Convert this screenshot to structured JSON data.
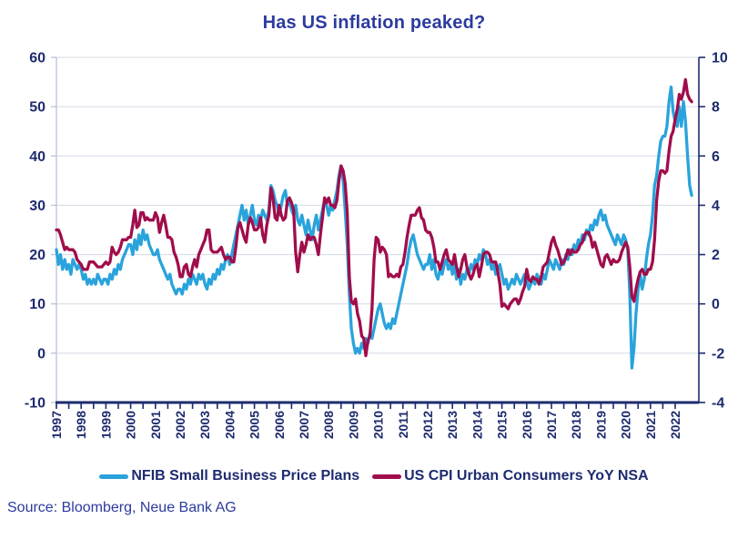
{
  "title": "Has US inflation peaked?",
  "source": "Source: Bloomberg, Neue Bank AG",
  "legend": [
    {
      "label": "NFIB Small Business Price Plans",
      "color": "#29a3dc"
    },
    {
      "label": "US CPI Urban Consumers YoY NSA",
      "color": "#a00d4b"
    }
  ],
  "colors": {
    "title_text": "#2c3b9e",
    "tick_text": "#1e2b6e",
    "nfib_blue": "#29a3dc",
    "cpi_maroon": "#a00d4b",
    "grid": "#d3d9e3",
    "axis_light": "#b9c3d4",
    "axis_dark": "#1e2b6e"
  },
  "chart_data": {
    "type": "line",
    "title": "Has US inflation peaked?",
    "x_frequency": "monthly",
    "x_start_year": 1997,
    "x_tick_labels": [
      "1997",
      "1998",
      "1999",
      "2000",
      "2001",
      "2002",
      "2003",
      "2004",
      "2005",
      "2006",
      "2007",
      "2008",
      "2009",
      "2010",
      "2011",
      "2012",
      "2013",
      "2014",
      "2015",
      "2016",
      "2017",
      "2018",
      "2019",
      "2020",
      "2021",
      "2022"
    ],
    "grid": "horizontal",
    "legend_position": "bottom",
    "left_axis": {
      "range": [
        -10,
        60
      ],
      "ticks": [
        60,
        50,
        40,
        30,
        20,
        10,
        0,
        -10
      ],
      "series": "NFIB Small Business Price Plans"
    },
    "right_axis": {
      "range": [
        -4,
        10
      ],
      "ticks": [
        10,
        8,
        6,
        4,
        2,
        0,
        -2,
        -4
      ],
      "series": "US CPI Urban Consumers YoY NSA"
    },
    "series": [
      {
        "name": "NFIB Small Business Price Plans",
        "axis": "left",
        "color": "#29a3dc",
        "values": [
          21,
          18,
          20,
          17,
          19,
          17,
          18,
          16,
          19,
          18,
          17,
          18,
          17,
          15,
          16,
          14,
          15,
          14,
          15,
          14,
          16,
          15,
          14,
          15,
          15,
          14,
          16,
          15,
          17,
          16,
          18,
          17,
          19,
          20,
          21,
          22,
          22,
          20,
          23,
          21,
          24,
          22,
          25,
          23,
          24,
          22,
          21,
          20,
          20,
          21,
          19,
          18,
          17,
          16,
          15,
          16,
          14,
          13,
          12,
          13,
          13,
          12,
          14,
          13,
          15,
          14,
          16,
          15,
          14,
          16,
          15,
          16,
          14,
          13,
          15,
          14,
          16,
          15,
          17,
          16,
          18,
          17,
          19,
          20,
          18,
          20,
          22,
          24,
          26,
          28,
          30,
          27,
          29,
          26,
          28,
          30,
          27,
          26,
          28,
          27,
          29,
          28,
          27,
          29,
          34,
          33,
          31,
          30,
          28,
          30,
          32,
          33,
          30,
          31,
          29,
          28,
          30,
          27,
          26,
          28,
          26,
          24,
          27,
          25,
          23,
          26,
          28,
          25,
          27,
          29,
          31,
          30,
          28,
          30,
          29,
          31,
          33,
          36,
          38,
          35,
          29,
          22,
          12,
          5,
          2,
          0,
          1,
          0,
          2,
          1,
          3,
          2,
          4,
          3,
          5,
          7,
          9,
          10,
          8,
          6,
          5,
          6,
          5,
          7,
          6,
          8,
          10,
          12,
          14,
          16,
          18,
          21,
          23,
          24,
          22,
          20,
          19,
          18,
          17,
          18,
          18,
          20,
          17,
          19,
          16,
          15,
          17,
          16,
          18,
          19,
          17,
          18,
          16,
          18,
          15,
          17,
          14,
          16,
          15,
          17,
          16,
          18,
          17,
          19,
          18,
          20,
          19,
          21,
          20,
          18,
          19,
          17,
          18,
          16,
          17,
          18,
          16,
          14,
          15,
          13,
          14,
          15,
          14,
          16,
          15,
          14,
          15,
          16,
          15,
          13,
          14,
          15,
          14,
          16,
          15,
          14,
          16,
          15,
          17,
          19,
          18,
          17,
          19,
          18,
          17,
          19,
          18,
          20,
          19,
          21,
          20,
          22,
          21,
          23,
          22,
          24,
          23,
          25,
          24,
          26,
          25,
          27,
          26,
          28,
          29,
          27,
          28,
          26,
          25,
          24,
          23,
          22,
          24,
          23,
          22,
          24,
          23,
          21,
          12,
          -3,
          1,
          8,
          13,
          16,
          13,
          15,
          19,
          22,
          24,
          28,
          34,
          36,
          40,
          43,
          44,
          44,
          46,
          51,
          54,
          49,
          47,
          46,
          50,
          46,
          51,
          47,
          40,
          34,
          32
        ]
      },
      {
        "name": "US CPI Urban Consumers YoY NSA",
        "axis": "right",
        "color": "#a00d4b",
        "values": [
          3.0,
          3.0,
          2.8,
          2.5,
          2.2,
          2.3,
          2.2,
          2.2,
          2.2,
          2.1,
          1.8,
          1.7,
          1.6,
          1.4,
          1.4,
          1.4,
          1.7,
          1.7,
          1.7,
          1.6,
          1.5,
          1.5,
          1.5,
          1.6,
          1.7,
          1.6,
          1.7,
          2.3,
          2.1,
          2.0,
          2.1,
          2.3,
          2.6,
          2.6,
          2.6,
          2.7,
          2.7,
          3.2,
          3.8,
          3.1,
          3.2,
          3.7,
          3.7,
          3.4,
          3.5,
          3.4,
          3.4,
          3.4,
          3.7,
          3.5,
          2.9,
          3.3,
          3.6,
          3.2,
          2.7,
          2.7,
          2.6,
          2.1,
          1.9,
          1.6,
          1.1,
          1.1,
          1.5,
          1.6,
          1.2,
          1.1,
          1.5,
          1.8,
          1.5,
          2.0,
          2.2,
          2.4,
          2.6,
          3.0,
          3.0,
          2.2,
          2.1,
          2.1,
          2.1,
          2.2,
          2.3,
          2.0,
          1.8,
          1.9,
          1.9,
          1.7,
          1.7,
          2.3,
          3.1,
          3.3,
          3.0,
          2.7,
          2.5,
          3.2,
          3.5,
          3.3,
          3.0,
          3.0,
          3.1,
          3.5,
          2.8,
          2.5,
          3.2,
          3.6,
          4.7,
          4.3,
          3.5,
          3.4,
          4.0,
          3.6,
          3.4,
          3.5,
          4.2,
          4.3,
          4.1,
          3.8,
          2.1,
          1.3,
          2.0,
          2.5,
          2.1,
          2.4,
          2.8,
          2.6,
          2.7,
          2.7,
          2.4,
          2.0,
          2.8,
          3.5,
          4.3,
          4.1,
          4.3,
          4.0,
          4.0,
          3.9,
          4.2,
          5.0,
          5.6,
          5.4,
          4.9,
          3.7,
          1.1,
          0.1,
          0.0,
          0.2,
          -0.4,
          -0.7,
          -1.3,
          -1.4,
          -2.1,
          -1.5,
          -1.3,
          -0.2,
          1.8,
          2.7,
          2.6,
          2.1,
          2.3,
          2.2,
          2.0,
          1.1,
          1.2,
          1.1,
          1.1,
          1.2,
          1.1,
          1.5,
          1.6,
          2.1,
          2.7,
          3.2,
          3.6,
          3.6,
          3.6,
          3.8,
          3.9,
          3.5,
          3.4,
          3.0,
          2.9,
          2.9,
          2.7,
          2.3,
          1.7,
          1.7,
          1.4,
          1.7,
          2.0,
          2.2,
          1.8,
          1.7,
          1.6,
          2.0,
          1.5,
          1.1,
          1.4,
          1.8,
          2.0,
          1.5,
          1.2,
          1.0,
          1.2,
          1.5,
          1.6,
          1.1,
          1.5,
          2.0,
          2.1,
          2.1,
          2.0,
          1.7,
          1.7,
          1.7,
          1.3,
          0.8,
          -0.1,
          0.0,
          -0.1,
          -0.2,
          0.0,
          0.1,
          0.2,
          0.2,
          0.0,
          0.2,
          0.5,
          0.7,
          1.4,
          1.0,
          0.9,
          1.1,
          1.0,
          1.0,
          0.8,
          1.1,
          1.5,
          1.6,
          1.7,
          2.1,
          2.5,
          2.7,
          2.4,
          2.2,
          1.9,
          1.6,
          1.7,
          1.9,
          2.2,
          2.0,
          2.2,
          2.1,
          2.1,
          2.2,
          2.4,
          2.5,
          2.8,
          2.9,
          2.9,
          2.7,
          2.3,
          2.5,
          2.2,
          1.9,
          1.6,
          1.5,
          1.9,
          2.0,
          1.8,
          1.6,
          1.8,
          1.7,
          1.7,
          1.8,
          2.1,
          2.3,
          2.5,
          2.3,
          1.5,
          0.3,
          0.1,
          0.6,
          1.0,
          1.3,
          1.4,
          1.2,
          1.2,
          1.4,
          1.4,
          1.7,
          2.6,
          4.2,
          5.0,
          5.4,
          5.4,
          5.3,
          5.4,
          6.2,
          6.8,
          7.0,
          7.5,
          7.9,
          8.5,
          8.3,
          8.6,
          9.1,
          8.5,
          8.3,
          8.2
        ]
      }
    ]
  }
}
